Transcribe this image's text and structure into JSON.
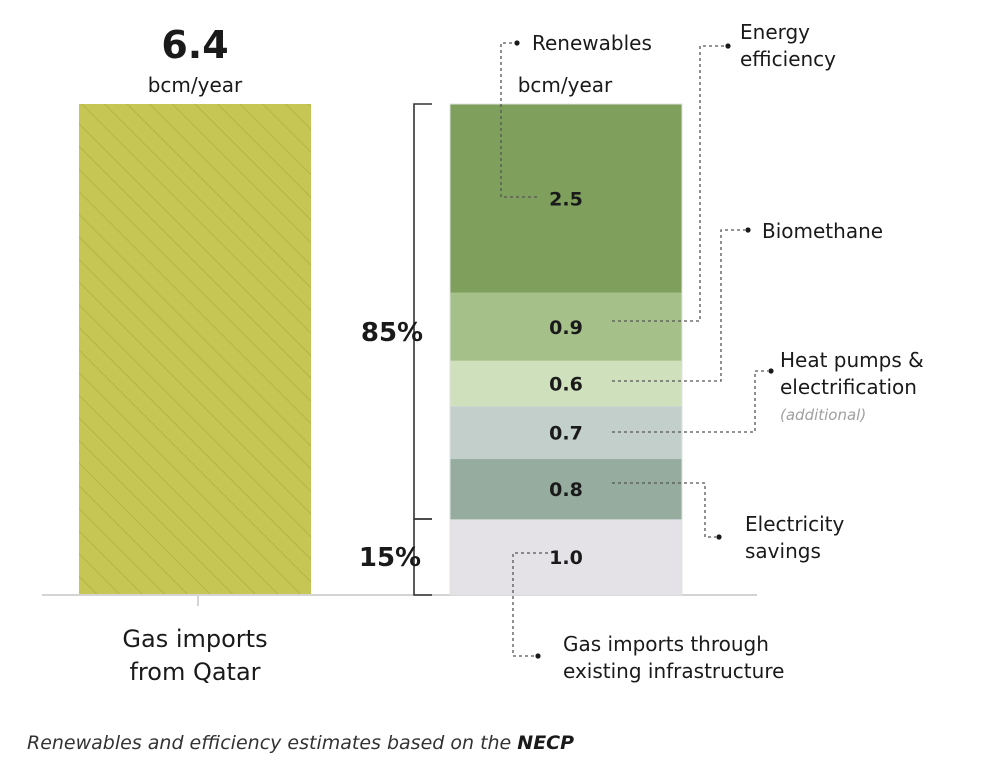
{
  "chart_data": {
    "type": "bar",
    "unit": "bcm/year",
    "left_bar": {
      "total": "6.4",
      "unit": "bcm/year",
      "value": 6.4,
      "label_line1": "Gas imports",
      "label_line2": "from Qatar",
      "color": "#c5c653"
    },
    "right_bar": {
      "unit": "bcm/year",
      "segments": [
        {
          "value": 1.0,
          "label": "1.0",
          "color": "#e4e2e6",
          "annotation": [
            "Gas imports through",
            "existing infrastructure"
          ]
        },
        {
          "value": 0.8,
          "label": "0.8",
          "color": "#95ac9f",
          "annotation": [
            "Electricity",
            "savings"
          ]
        },
        {
          "value": 0.7,
          "label": "0.7",
          "color": "#c2cfca",
          "annotation": [
            "Heat pumps &",
            "electrification"
          ],
          "note": "(additional)"
        },
        {
          "value": 0.6,
          "label": "0.6",
          "color": "#cfe0bd",
          "annotation": [
            "Biomethane"
          ]
        },
        {
          "value": 0.9,
          "label": "0.9",
          "color": "#a5c089",
          "annotation": [
            "Energy",
            "efficiency"
          ]
        },
        {
          "value": 2.5,
          "label": "2.5",
          "color": "#7ea05c",
          "annotation": [
            "Renewables"
          ]
        }
      ],
      "brackets": [
        {
          "label": "85%",
          "covers": "0.8 + 0.7 + 0.6 + 0.9 + 2.5"
        },
        {
          "label": "15%",
          "covers": "1.0"
        }
      ]
    },
    "footnote_prefix": "Renewables and efficiency estimates based on the ",
    "footnote_bold": "NECP"
  }
}
